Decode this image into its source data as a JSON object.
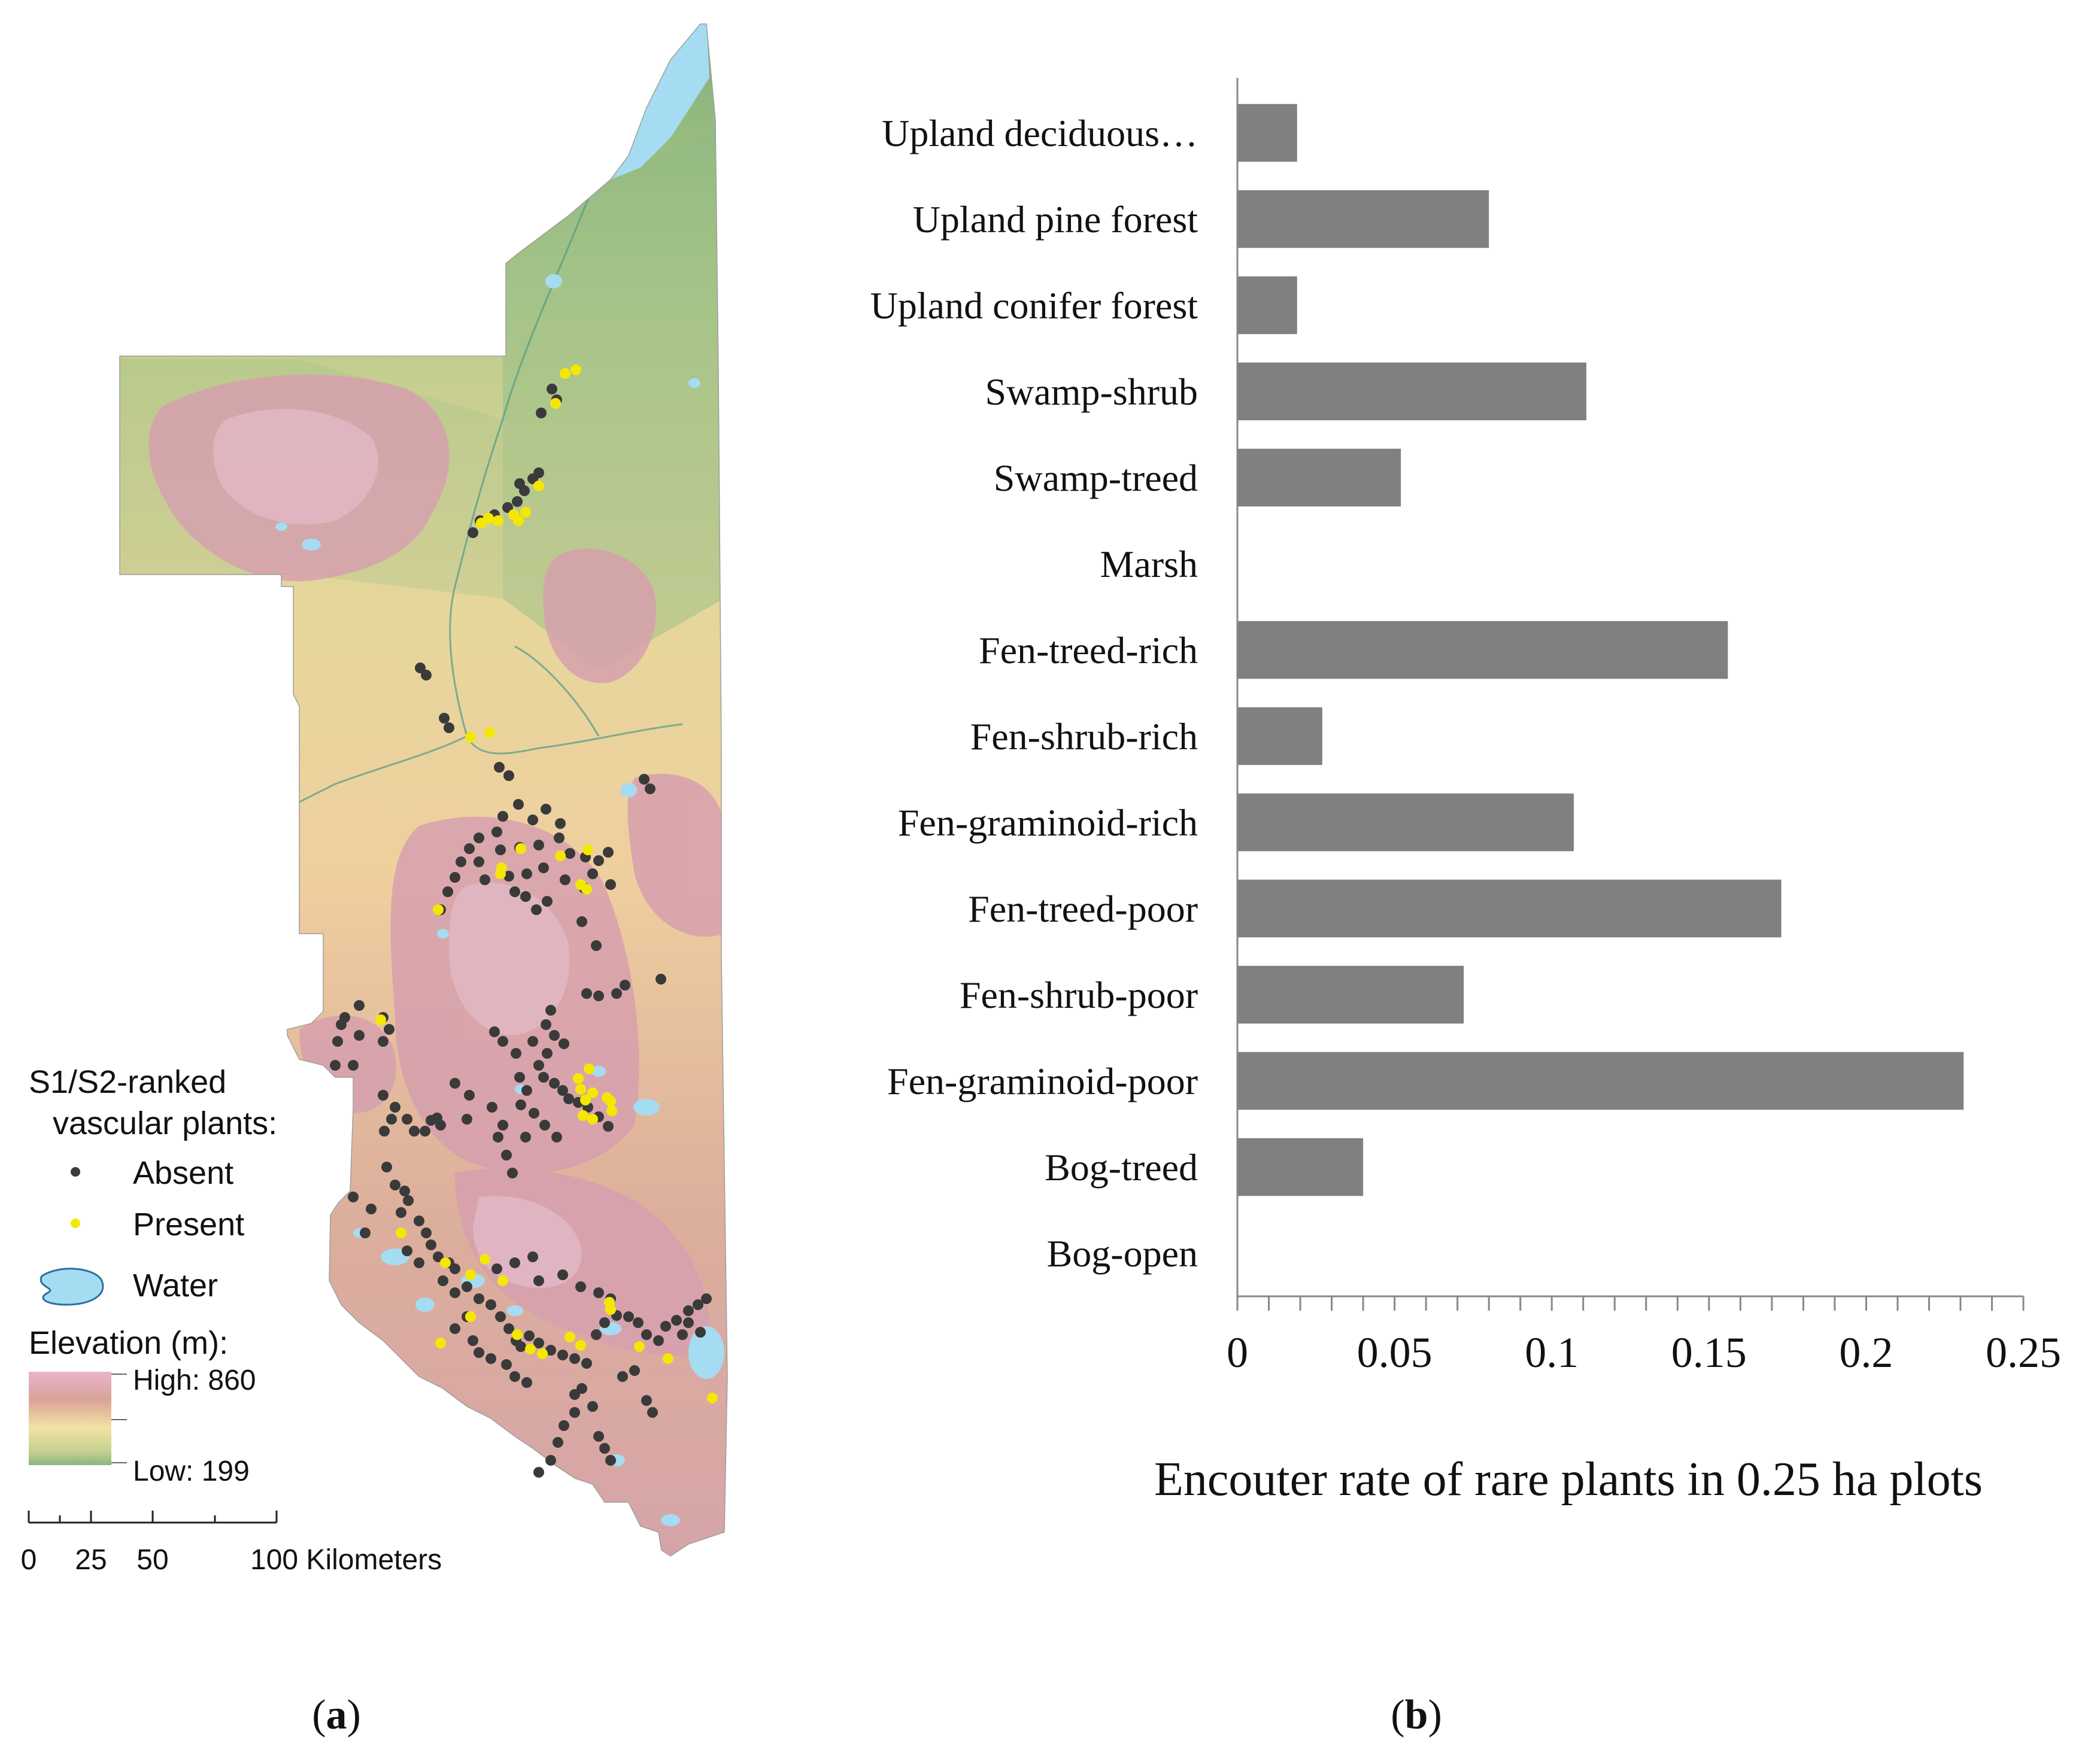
{
  "panel_a": {
    "caption_open": "(",
    "caption_letter": "a",
    "caption_close": ")",
    "legend": {
      "title_line1": "S1/S2-ranked",
      "title_line2": "vascular plants:",
      "absent_label": "Absent",
      "present_label": "Present",
      "water_label": "Water",
      "elevation_title": "Elevation (m):",
      "high_label": "High: 860",
      "low_label": "Low: 199",
      "high_value": 860,
      "low_value": 199
    },
    "scale_bar": {
      "ticks": [
        "0",
        "25",
        "50",
        "100 Kilometers"
      ]
    },
    "colors": {
      "absent": "#3a3a3a",
      "present": "#f5e800",
      "water": "#a6dcf2",
      "elev_high": "#d9a0b4",
      "elev_mid": "#f0dca8",
      "elev_low": "#7aa872"
    }
  },
  "panel_b": {
    "caption_open": "(",
    "caption_letter": "b",
    "caption_close": ")"
  },
  "chart_data": {
    "type": "bar",
    "orientation": "horizontal",
    "categories": [
      "Upland deciduous…",
      "Upland pine forest",
      "Upland conifer forest",
      "Swamp-shrub",
      "Swamp-treed",
      "Marsh",
      "Fen-treed-rich",
      "Fen-shrub-rich",
      "Fen-graminoid-rich",
      "Fen-treed-poor",
      "Fen-shrub-poor",
      "Fen-graminoid-poor",
      "Bog-treed",
      "Bog-open"
    ],
    "values": [
      0.019,
      0.08,
      0.019,
      0.111,
      0.052,
      0,
      0.156,
      0.027,
      0.107,
      0.173,
      0.072,
      0.231,
      0.04,
      0
    ],
    "xlabel": "Encouter rate of rare plants in 0.25 ha plots",
    "ylabel": "",
    "xlim": [
      0,
      0.25
    ],
    "xticks": [
      "0",
      "0.05",
      "0.1",
      "0.15",
      "0.2",
      "0.25"
    ],
    "bar_color": "#808080",
    "grid": false
  }
}
